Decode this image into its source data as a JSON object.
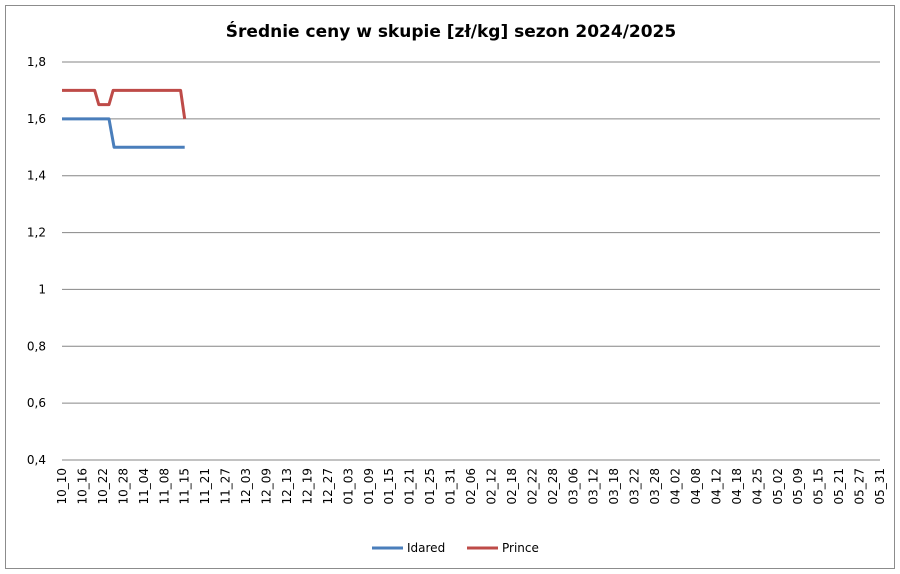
{
  "chart_data": {
    "type": "line",
    "title": "Średnie ceny w skupie [zł/kg] sezon 2024/2025",
    "xlabel": "",
    "ylabel": "",
    "ylim": [
      0.4,
      1.8
    ],
    "yticks": [
      "0,4",
      "0,6",
      "0,8",
      "1",
      "1,2",
      "1,4",
      "1,6",
      "1,8"
    ],
    "ytick_values": [
      0.4,
      0.6,
      0.8,
      1.0,
      1.2,
      1.4,
      1.6,
      1.8
    ],
    "categories": [
      "10_10",
      "10_16",
      "10_22",
      "10_28",
      "11_04",
      "11_08",
      "11_15",
      "11_21",
      "11_27",
      "12_03",
      "12_09",
      "12_13",
      "12_19",
      "12_27",
      "01_03",
      "01_09",
      "01_15",
      "01_21",
      "01_25",
      "01_31",
      "02_06",
      "02_12",
      "02_18",
      "02_22",
      "02_28",
      "03_06",
      "03_12",
      "03_18",
      "03_22",
      "03_28",
      "04_02",
      "04_08",
      "04_12",
      "04_18",
      "04_25",
      "05_02",
      "05_09",
      "05_15",
      "05_21",
      "05_27",
      "05_31"
    ],
    "grid": true,
    "legend": "bottom",
    "series": [
      {
        "name": "Idared",
        "color": "#4a7ebb",
        "x": [
          0,
          1.6,
          2.3,
          2.55,
          6.0
        ],
        "values": [
          1.6,
          1.6,
          1.6,
          1.5,
          1.5
        ]
      },
      {
        "name": "Prince",
        "color": "#be4b48",
        "x": [
          0,
          1.6,
          1.8,
          2.3,
          2.5,
          5.8,
          6.0
        ],
        "values": [
          1.7,
          1.7,
          1.65,
          1.65,
          1.7,
          1.7,
          1.6
        ]
      }
    ]
  }
}
